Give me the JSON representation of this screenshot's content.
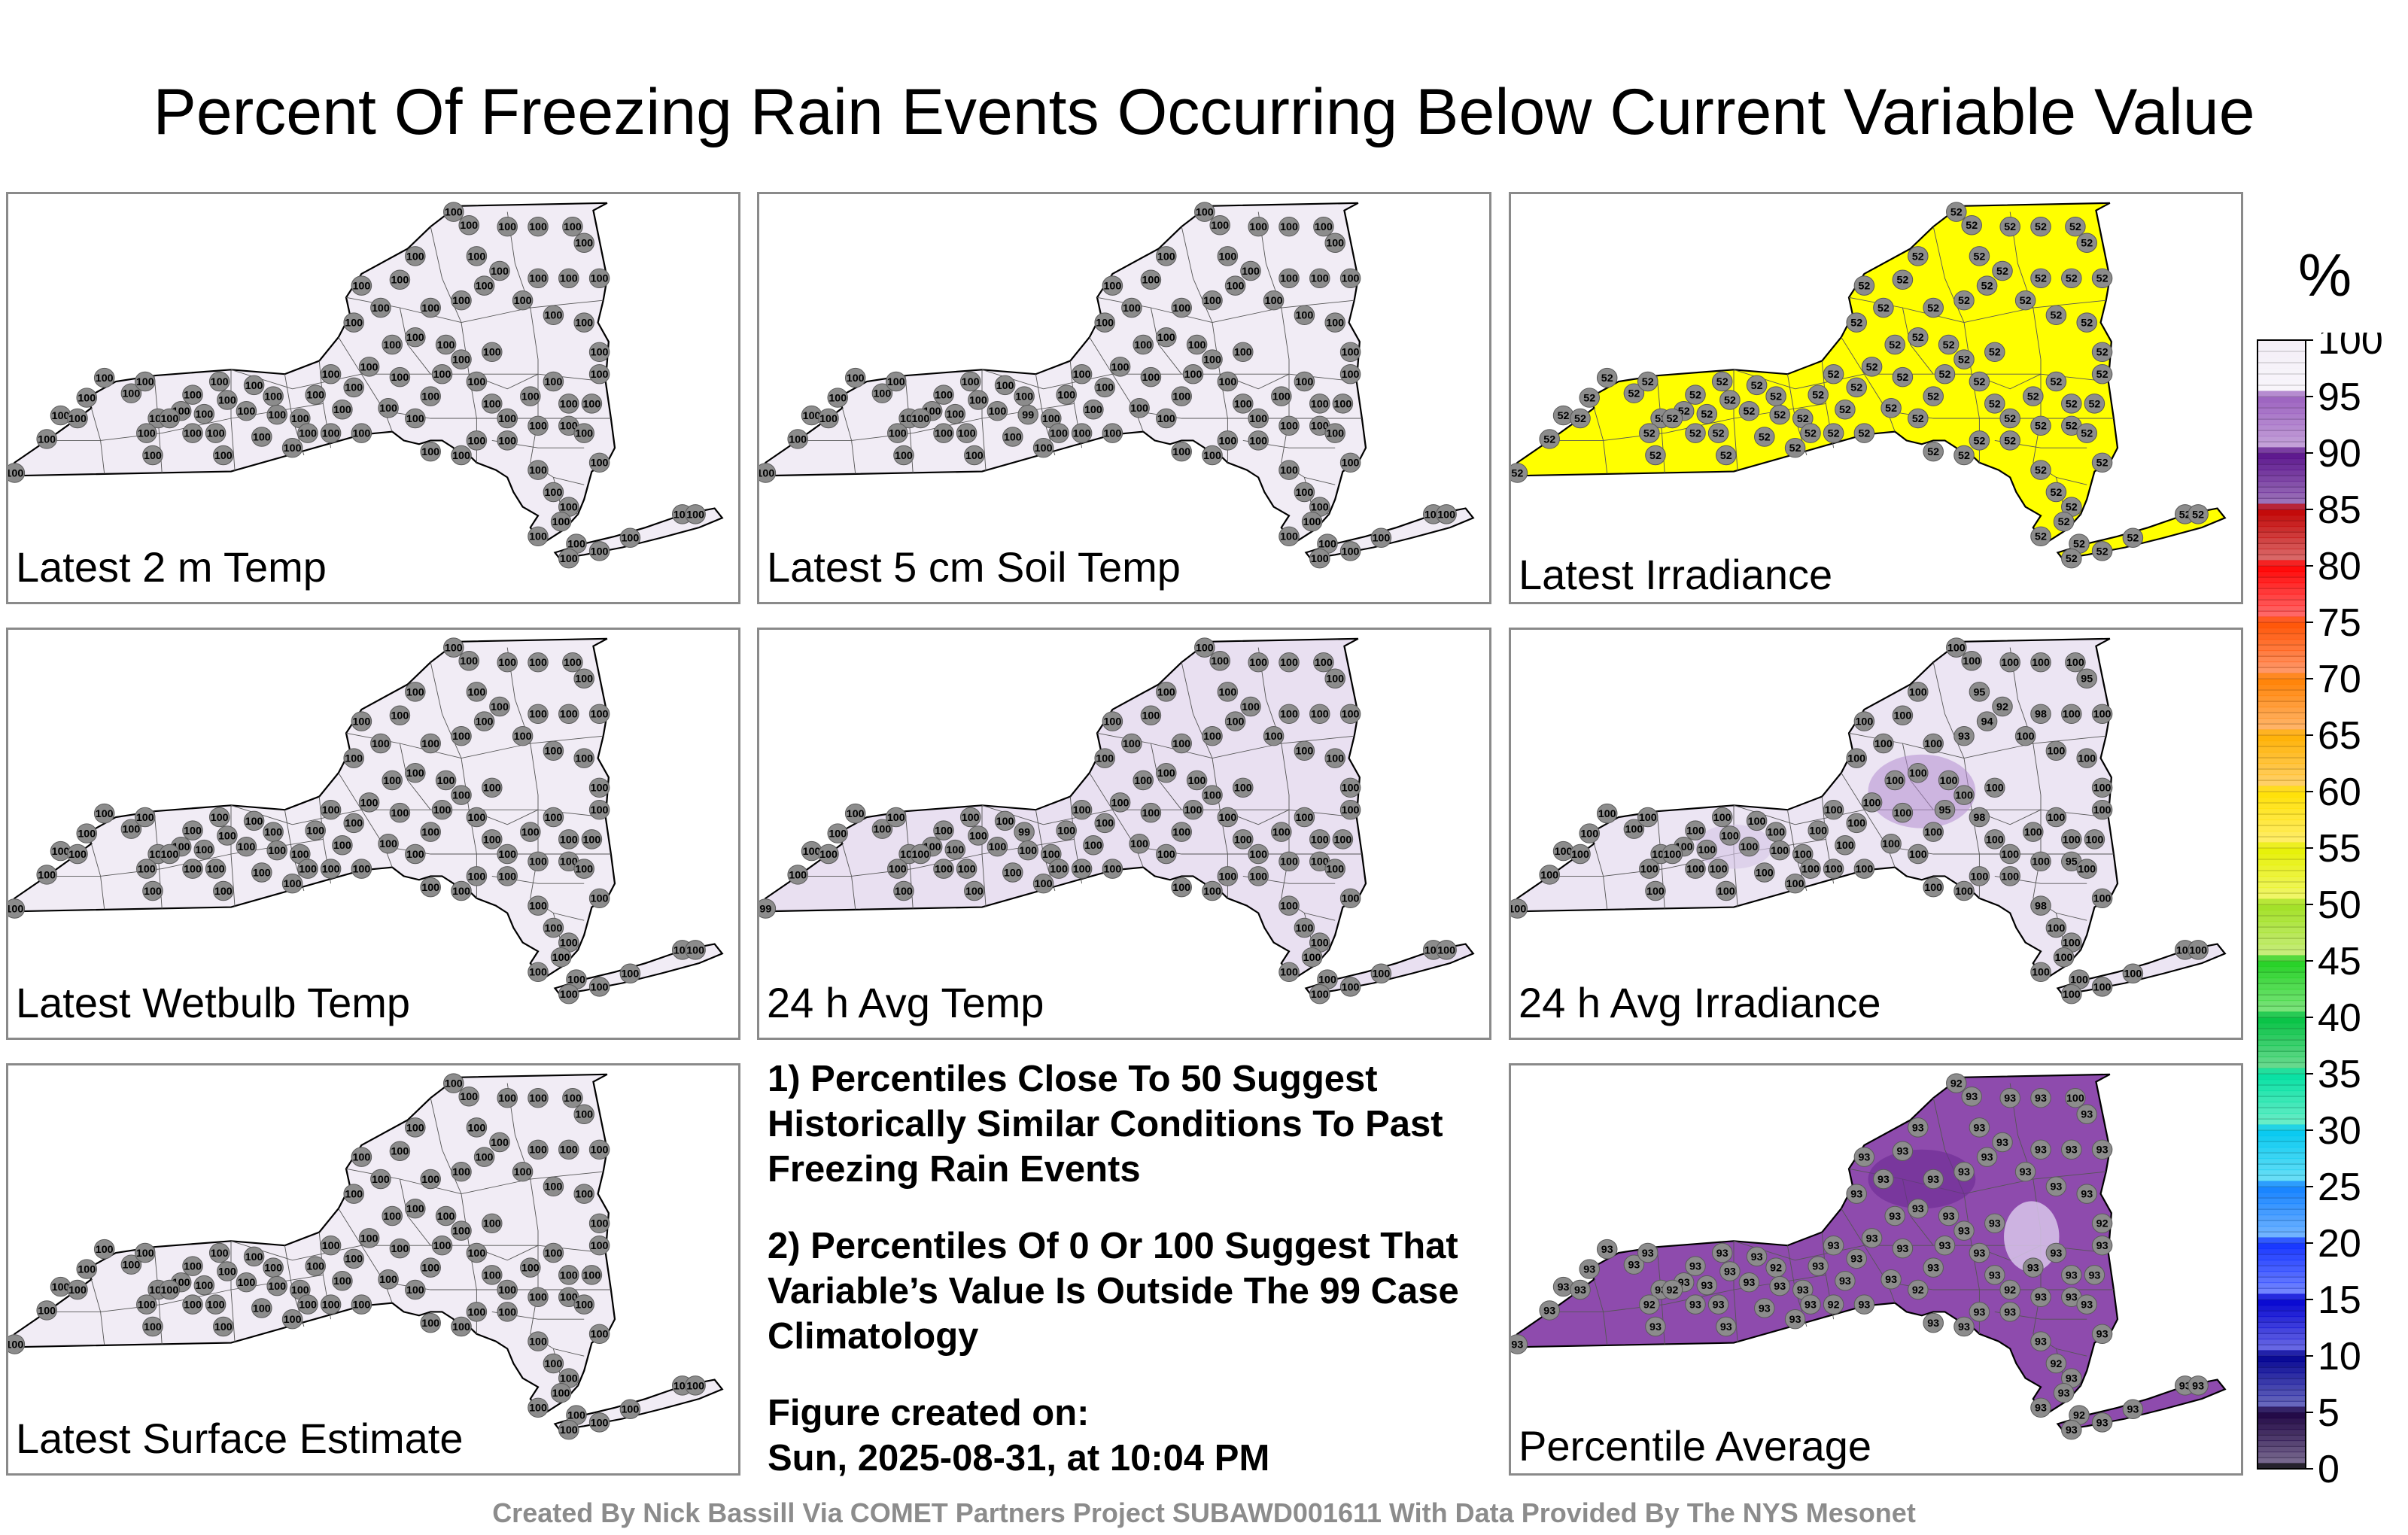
{
  "title": "Percent Of Freezing Rain Events Occurring Below Current Variable Value",
  "panels": [
    {
      "label": "Latest 2 m Temp",
      "fill": "#f1ecf5",
      "default_value": "100",
      "overrides": {
        "0": "100"
      }
    },
    {
      "label": "Latest 5 cm Soil Temp",
      "fill": "#f1ecf5",
      "default_value": "100",
      "overrides": {
        "18": "99"
      }
    },
    {
      "label": "Latest Irradiance",
      "fill": "#ffff00",
      "default_value": "52",
      "overrides": {}
    },
    {
      "label": "Latest Wetbulb Temp",
      "fill": "#f1ecf5",
      "default_value": "100",
      "overrides": {}
    },
    {
      "label": "24 h Avg Temp",
      "fill": "#e9e0f1",
      "default_value": "100",
      "overrides": {
        "0": "99",
        "17": "99"
      }
    },
    {
      "label": "24 h Avg Irradiance",
      "fill": "#ece5f3",
      "default_value": "100",
      "overrides": {
        "54": "93",
        "55": "94",
        "56": "92",
        "57": "95",
        "31": "95",
        "40": "95",
        "63": "95",
        "66": "98",
        "75": "98",
        "33": "98"
      }
    },
    {
      "label": "Latest Surface Estimate",
      "fill": "#f1ecf5",
      "default_value": "100",
      "overrides": {}
    },
    {
      "label": "Percentile Average",
      "fill": "#8e4bad",
      "default_value": "93",
      "overrides": {
        "17": "92",
        "29": "92",
        "35": "92",
        "46": "92",
        "58": "92",
        "62": "100",
        "70": "92",
        "76": "92",
        "80": "92",
        "93": "92",
        "94": "92"
      }
    }
  ],
  "notes": {
    "note1": "1) Percentiles Close To 50 Suggest Historically Similar Conditions To Past Freezing Rain Events",
    "note2": "2) Percentiles Of 0 Or 100 Suggest That Variable’s Value Is Outside The 99 Case Climatology",
    "created_label": "Figure created on:",
    "created_value": "Sun, 2025-08-31, at 10:04 PM"
  },
  "colorbar": {
    "unit": "%",
    "ticks": [
      "0",
      "5",
      "10",
      "15",
      "20",
      "25",
      "30",
      "35",
      "40",
      "45",
      "50",
      "55",
      "60",
      "65",
      "70",
      "75",
      "80",
      "85",
      "90",
      "95",
      "100"
    ],
    "colors": [
      "#000000",
      "#1a0040",
      "#000090",
      "#0000d0",
      "#1030ff",
      "#1080ff",
      "#00c8f0",
      "#00e0a0",
      "#00c040",
      "#20d020",
      "#a0e020",
      "#e6f000",
      "#ffe000",
      "#ffb000",
      "#ff8000",
      "#ff5000",
      "#ff0000",
      "#c00000",
      "#58108a",
      "#9a5fbe",
      "#f3eef7"
    ]
  },
  "footer": "Created By Nick Bassill Via COMET Partners Project SUBAWD001611 With Data Provided By The NYS Mesonet"
}
